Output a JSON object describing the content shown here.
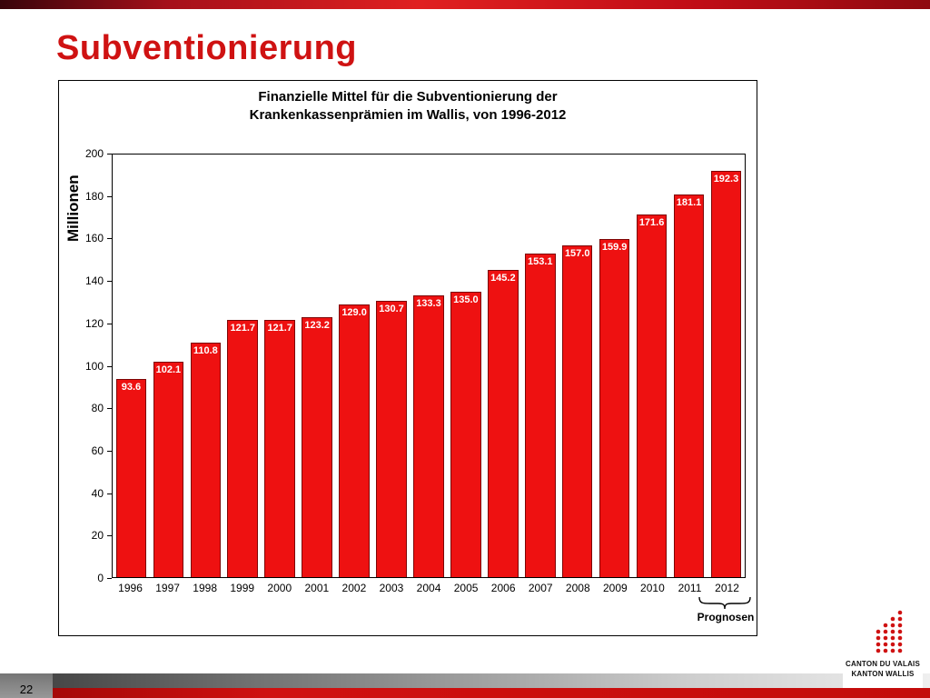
{
  "slide": {
    "title": "Subventionierung",
    "page_number": "22"
  },
  "colors": {
    "accent_red": "#cf1212",
    "bar_red": "#ee1111"
  },
  "chart_data": {
    "type": "bar",
    "title": "Finanzielle Mittel für die Subventionierung der Krankenkassenprämien im Wallis, von 1996-2012",
    "title_lines": [
      "Finanzielle Mittel für die Subventionierung der",
      "Krankenkassenprämien im Wallis, von 1996-2012"
    ],
    "ylabel": "Millionen",
    "xlabel": "",
    "ylim": [
      0,
      200
    ],
    "ytick_step": 20,
    "grid": false,
    "legend": false,
    "bar_color": "#ee1111",
    "value_label_color": "#ffffff",
    "categories": [
      "1996",
      "1997",
      "1998",
      "1999",
      "2000",
      "2001",
      "2002",
      "2003",
      "2004",
      "2005",
      "2006",
      "2007",
      "2008",
      "2009",
      "2010",
      "2011",
      "2012"
    ],
    "values": [
      93.6,
      102.1,
      110.8,
      121.7,
      121.7,
      123.2,
      129.0,
      130.7,
      133.3,
      135.0,
      145.2,
      153.1,
      157.0,
      159.9,
      171.6,
      181.1,
      192.3
    ],
    "annotation": "Prognosen",
    "annotation_target": "2012"
  },
  "footer": {
    "logo_line1": "CANTON DU VALAIS",
    "logo_line2": "KANTON WALLIS"
  }
}
